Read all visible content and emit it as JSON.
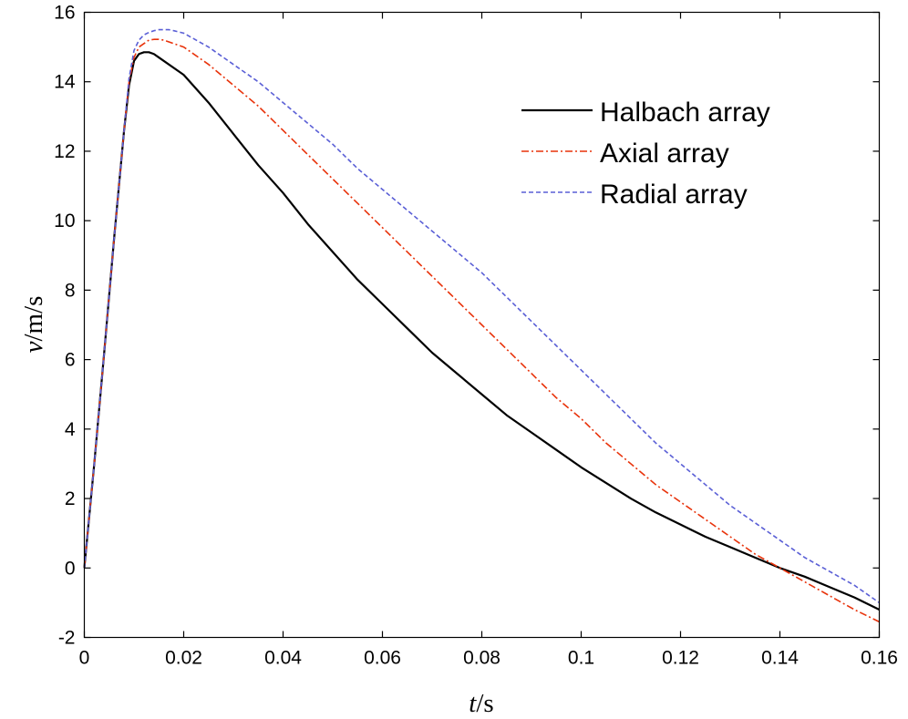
{
  "chart_data": {
    "type": "line",
    "title": "",
    "xlabel_var": "t",
    "xlabel_unit": "/s",
    "ylabel_var": "v",
    "ylabel_unit": "/m/s",
    "xlim": [
      0,
      0.16
    ],
    "ylim": [
      -2,
      16
    ],
    "xticks": [
      0,
      0.02,
      0.04,
      0.06,
      0.08,
      0.1,
      0.12,
      0.14,
      0.16
    ],
    "xtick_labels": [
      "0",
      "0.02",
      "0.04",
      "0.06",
      "0.08",
      "0.1",
      "0.12",
      "0.14",
      "0.16"
    ],
    "yticks": [
      -2,
      0,
      2,
      4,
      6,
      8,
      10,
      12,
      14,
      16
    ],
    "ytick_labels": [
      "-2",
      "0",
      "2",
      "4",
      "6",
      "8",
      "10",
      "12",
      "14",
      "16"
    ],
    "grid": false,
    "legend_position": "top-right",
    "series": [
      {
        "name": "Halbach array",
        "color": "#000000",
        "dash": "solid",
        "x": [
          0,
          0.002,
          0.004,
          0.006,
          0.008,
          0.009,
          0.01,
          0.011,
          0.012,
          0.013,
          0.014,
          0.015,
          0.02,
          0.025,
          0.03,
          0.035,
          0.04,
          0.045,
          0.05,
          0.055,
          0.06,
          0.065,
          0.07,
          0.075,
          0.08,
          0.085,
          0.09,
          0.095,
          0.1,
          0.105,
          0.11,
          0.115,
          0.12,
          0.125,
          0.13,
          0.135,
          0.14,
          0.145,
          0.15,
          0.155,
          0.16
        ],
        "y": [
          0,
          3.0,
          6.2,
          9.5,
          12.6,
          13.9,
          14.6,
          14.8,
          14.85,
          14.85,
          14.8,
          14.7,
          14.2,
          13.4,
          12.5,
          11.6,
          10.8,
          9.9,
          9.1,
          8.3,
          7.6,
          6.9,
          6.2,
          5.6,
          5.0,
          4.4,
          3.9,
          3.4,
          2.9,
          2.45,
          2.0,
          1.6,
          1.25,
          0.9,
          0.6,
          0.3,
          0.0,
          -0.25,
          -0.55,
          -0.85,
          -1.2
        ]
      },
      {
        "name": "Axial array",
        "color": "#e8320a",
        "dash": "dashdot",
        "x": [
          0,
          0.002,
          0.004,
          0.006,
          0.008,
          0.009,
          0.01,
          0.011,
          0.012,
          0.013,
          0.014,
          0.015,
          0.016,
          0.02,
          0.025,
          0.03,
          0.035,
          0.04,
          0.045,
          0.05,
          0.055,
          0.06,
          0.065,
          0.07,
          0.075,
          0.08,
          0.085,
          0.09,
          0.095,
          0.1,
          0.105,
          0.11,
          0.115,
          0.12,
          0.125,
          0.13,
          0.135,
          0.14,
          0.145,
          0.15,
          0.155,
          0.16
        ],
        "y": [
          0,
          3.0,
          6.2,
          9.5,
          12.6,
          14.0,
          14.7,
          15.0,
          15.1,
          15.2,
          15.22,
          15.22,
          15.2,
          15.0,
          14.5,
          13.9,
          13.3,
          12.6,
          11.9,
          11.2,
          10.5,
          9.8,
          9.1,
          8.4,
          7.7,
          7.0,
          6.3,
          5.6,
          4.9,
          4.3,
          3.6,
          3.0,
          2.4,
          1.9,
          1.4,
          0.9,
          0.4,
          0.0,
          -0.4,
          -0.8,
          -1.2,
          -1.55
        ]
      },
      {
        "name": "Radial array",
        "color": "#5a5fd6",
        "dash": "dashed",
        "x": [
          0,
          0.002,
          0.004,
          0.006,
          0.008,
          0.009,
          0.01,
          0.011,
          0.012,
          0.013,
          0.014,
          0.015,
          0.016,
          0.017,
          0.018,
          0.02,
          0.025,
          0.03,
          0.035,
          0.04,
          0.045,
          0.05,
          0.055,
          0.06,
          0.065,
          0.07,
          0.075,
          0.08,
          0.085,
          0.09,
          0.095,
          0.1,
          0.105,
          0.11,
          0.115,
          0.12,
          0.125,
          0.13,
          0.135,
          0.14,
          0.145,
          0.15,
          0.155,
          0.16
        ],
        "y": [
          0,
          3.0,
          6.2,
          9.5,
          12.6,
          14.1,
          14.9,
          15.2,
          15.35,
          15.42,
          15.47,
          15.5,
          15.5,
          15.5,
          15.47,
          15.4,
          15.0,
          14.5,
          14.0,
          13.4,
          12.8,
          12.2,
          11.5,
          10.9,
          10.3,
          9.7,
          9.1,
          8.5,
          7.8,
          7.1,
          6.4,
          5.7,
          5.0,
          4.3,
          3.6,
          3.0,
          2.4,
          1.8,
          1.3,
          0.8,
          0.3,
          -0.1,
          -0.5,
          -1.0
        ]
      }
    ]
  }
}
